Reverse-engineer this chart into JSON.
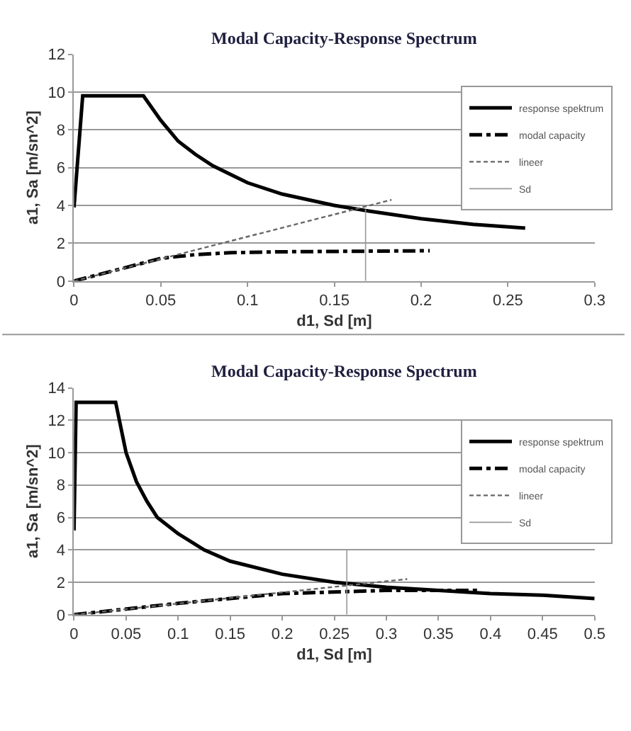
{
  "chart_data": [
    {
      "type": "line",
      "title": "Modal Capacity-Response Spectrum",
      "xlabel": "d1, Sd [m]",
      "ylabel": "a1, Sa [m/sn^2]",
      "xlim": [
        0,
        0.3
      ],
      "xticks": [
        0,
        0.05,
        0.1,
        0.15,
        0.2,
        0.25,
        0.3
      ],
      "ylim": [
        0,
        12
      ],
      "yticks": [
        0,
        2,
        4,
        6,
        8,
        10,
        12
      ],
      "grid": "y",
      "legend": "right",
      "series": [
        {
          "name": "response spektrum",
          "color": "#000000",
          "line_style": "solid",
          "x": [
            0,
            0.005,
            0.04,
            0.05,
            0.06,
            0.07,
            0.08,
            0.1,
            0.12,
            0.15,
            0.17,
            0.2,
            0.23,
            0.26
          ],
          "values": [
            3.9,
            9.8,
            9.8,
            8.5,
            7.4,
            6.7,
            6.1,
            5.2,
            4.6,
            4.0,
            3.7,
            3.3,
            3.0,
            2.8
          ]
        },
        {
          "name": "modal capacity",
          "color": "#000000",
          "line_style": "dashdot",
          "x": [
            0,
            0.05,
            0.07,
            0.09,
            0.12,
            0.2,
            0.205
          ],
          "values": [
            0,
            1.2,
            1.4,
            1.5,
            1.55,
            1.6,
            1.6
          ]
        },
        {
          "name": "lineer",
          "color": "#666666",
          "line_style": "dashed",
          "x": [
            0,
            0.183
          ],
          "values": [
            0,
            4.3
          ]
        },
        {
          "name": "Sd",
          "color": "#999999",
          "line_style": "solid",
          "x": [
            0.168,
            0.168
          ],
          "values": [
            0,
            3.8
          ]
        }
      ]
    },
    {
      "type": "line",
      "title": "Modal Capacity-Response Spectrum",
      "xlabel": "d1, Sd [m]",
      "ylabel": "a1, Sa [m/sn^2]",
      "xlim": [
        0,
        0.5
      ],
      "xticks": [
        0,
        0.05,
        0.1,
        0.15,
        0.2,
        0.25,
        0.3,
        0.35,
        0.4,
        0.45,
        0.5
      ],
      "ylim": [
        0,
        14
      ],
      "yticks": [
        0,
        2,
        4,
        6,
        8,
        10,
        12,
        14
      ],
      "grid": "y",
      "legend": "right",
      "series": [
        {
          "name": "response spektrum",
          "color": "#000000",
          "line_style": "solid",
          "x": [
            0,
            0.002,
            0.04,
            0.05,
            0.06,
            0.07,
            0.08,
            0.1,
            0.125,
            0.15,
            0.2,
            0.25,
            0.3,
            0.35,
            0.4,
            0.45,
            0.5
          ],
          "values": [
            5.2,
            13.1,
            13.1,
            10,
            8.2,
            7,
            6,
            5,
            4,
            3.3,
            2.5,
            2.0,
            1.7,
            1.5,
            1.3,
            1.2,
            1.0
          ]
        },
        {
          "name": "modal capacity",
          "color": "#000000",
          "line_style": "dashdot",
          "x": [
            0,
            0.1,
            0.2,
            0.25,
            0.3,
            0.39
          ],
          "values": [
            0,
            0.7,
            1.3,
            1.4,
            1.5,
            1.5
          ]
        },
        {
          "name": "lineer",
          "color": "#666666",
          "line_style": "dashed",
          "x": [
            0,
            0.32
          ],
          "values": [
            0,
            2.2
          ]
        },
        {
          "name": "Sd",
          "color": "#999999",
          "line_style": "solid",
          "x": [
            0.262,
            0.262
          ],
          "values": [
            0,
            4
          ]
        }
      ]
    }
  ]
}
